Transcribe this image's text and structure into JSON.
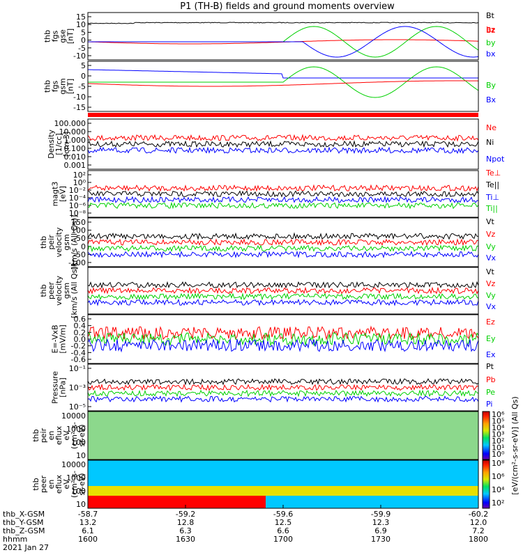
{
  "title": "P1 (TH-B) fields and ground moments overview",
  "colors": {
    "black": "#000000",
    "red": "#ff0000",
    "green": "#00d000",
    "blue": "#0000ff"
  },
  "chart_data": [
    {
      "type": "line",
      "panel": "fgs_gse",
      "ylabel": [
        "thb",
        "fgs",
        "gse",
        "[nT]"
      ],
      "yticks": [
        "15",
        "10",
        "5",
        "0",
        "-5",
        "-10"
      ],
      "ylim": [
        -12,
        16
      ],
      "series": [
        {
          "name": "Bt",
          "color": "black"
        },
        {
          "name": "bz",
          "color": "red"
        },
        {
          "name": "by",
          "color": "green"
        },
        {
          "name": "bx",
          "color": "blue"
        }
      ]
    },
    {
      "type": "line",
      "panel": "fgs_gsm",
      "ylabel": [
        "thb",
        "fgs",
        "gsm",
        "[nT]"
      ],
      "yticks": [
        "5",
        "0",
        "-5",
        "-10",
        "-15"
      ],
      "ylim": [
        -18,
        8
      ],
      "series": [
        {
          "name": "Bz",
          "color": "red"
        },
        {
          "name": "By",
          "color": "green"
        },
        {
          "name": "Bx",
          "color": "blue"
        }
      ]
    },
    {
      "type": "line",
      "panel": "density",
      "scale": "log",
      "ylabel": [
        "Density",
        "[1/cc]",
        "[cm-3]"
      ],
      "yticks": [
        "100.000",
        "10.000",
        "1.000",
        "0.100",
        "0.010",
        "0.001"
      ],
      "series": [
        {
          "name": "Ne",
          "color": "red"
        },
        {
          "name": "Ni",
          "color": "black"
        },
        {
          "name": "Npot",
          "color": "blue"
        }
      ]
    },
    {
      "type": "line",
      "panel": "temperature",
      "scale": "log",
      "ylabel": [
        "magt3",
        "[eV]"
      ],
      "yticks": [
        "10²",
        "10⁰",
        "10⁻²",
        "10⁻⁴",
        "10⁻⁶",
        "10⁻⁸"
      ],
      "series": [
        {
          "name": "Te⊥",
          "color": "red"
        },
        {
          "name": "Te||",
          "color": "black"
        },
        {
          "name": "Ti⊥",
          "color": "blue"
        },
        {
          "name": "Ti||",
          "color": "green"
        }
      ]
    },
    {
      "type": "line",
      "panel": "peir_velocity",
      "ylabel": [
        "thb",
        "peir",
        "velocity",
        "gsm",
        "[km/s (All Qs)]"
      ],
      "yticks": [
        "150",
        "100",
        "50",
        "0",
        "-50",
        "-100"
      ],
      "ylim": [
        -110,
        160
      ],
      "series": [
        {
          "name": "Vt",
          "color": "black"
        },
        {
          "name": "Vz",
          "color": "red"
        },
        {
          "name": "Vy",
          "color": "green"
        },
        {
          "name": "Vx",
          "color": "blue"
        }
      ]
    },
    {
      "type": "line",
      "panel": "peer_velocity",
      "ylabel": [
        "thb",
        "peer",
        "velocity",
        "gsm",
        "[km/s (All Qs)]"
      ],
      "yticks": [],
      "series": [
        {
          "name": "Vt",
          "color": "black"
        },
        {
          "name": "Vz",
          "color": "red"
        },
        {
          "name": "Vy",
          "color": "green"
        },
        {
          "name": "Vx",
          "color": "blue"
        }
      ]
    },
    {
      "type": "line",
      "panel": "efield",
      "ylabel": [
        "E=-VxB",
        "[mV/m]"
      ],
      "yticks": [
        "0.6",
        "0.4",
        "0.2",
        "0.0",
        "-0.2",
        "-0.4",
        "-0.6"
      ],
      "ylim": [
        -0.7,
        0.7
      ],
      "series": [
        {
          "name": "Ez",
          "color": "red"
        },
        {
          "name": "Ey",
          "color": "green"
        },
        {
          "name": "Ex",
          "color": "blue"
        }
      ]
    },
    {
      "type": "line",
      "panel": "pressure",
      "scale": "log",
      "ylabel": [
        "Pressure",
        "[nPa]"
      ],
      "yticks": [
        "10⁻¹",
        "10⁻³",
        "10⁻⁵"
      ],
      "series": [
        {
          "name": "Pt",
          "color": "black"
        },
        {
          "name": "Pb",
          "color": "red"
        },
        {
          "name": "Pe",
          "color": "green"
        },
        {
          "name": "Pi",
          "color": "blue"
        }
      ]
    },
    {
      "type": "heatmap",
      "panel": "peir_en_eflux",
      "scale": "log",
      "ylabel": [
        "thb",
        "peir",
        "en",
        "eflux",
        "eV",
        "(cm²-s-",
        "sr-eV)"
      ],
      "yticks": [
        "10000",
        "1000",
        "100",
        "10"
      ],
      "colorbar_ticks": [
        "10⁶",
        "10⁵",
        "10⁴",
        "10³",
        "10²",
        "10¹",
        "10⁰"
      ]
    },
    {
      "type": "heatmap",
      "panel": "peer_en_eflux",
      "scale": "log",
      "ylabel": [
        "thb",
        "peer",
        "en",
        "eflux",
        "eV",
        "(cm²-s-",
        "sr-eV)"
      ],
      "yticks": [
        "10000",
        "1000",
        "100",
        "10"
      ],
      "colorbar_ticks": [
        "10⁸",
        "10⁶",
        "10⁴",
        "10²"
      ]
    }
  ],
  "colorbar_label": "[eV/(cm²-s-sr-eV)]",
  "colorbar_label_upper": "(All Qs)",
  "x_axis": {
    "row_labels": [
      "thb_X-GSM",
      "thb_Y-GSM",
      "thb_Z-GSM",
      "hhmm",
      "2021 Jan 27"
    ],
    "ticks": [
      {
        "x": "-58.7",
        "y": "13.2",
        "z": "6.1",
        "t": "1600"
      },
      {
        "x": "-59.2",
        "y": "12.8",
        "z": "6.3",
        "t": "1630"
      },
      {
        "x": "-59.6",
        "y": "12.5",
        "z": "6.6",
        "t": "1700"
      },
      {
        "x": "-59.9",
        "y": "12.3",
        "z": "6.9",
        "t": "1730"
      },
      {
        "x": "-60.2",
        "y": "12.0",
        "z": "7.2",
        "t": "1800"
      }
    ]
  }
}
